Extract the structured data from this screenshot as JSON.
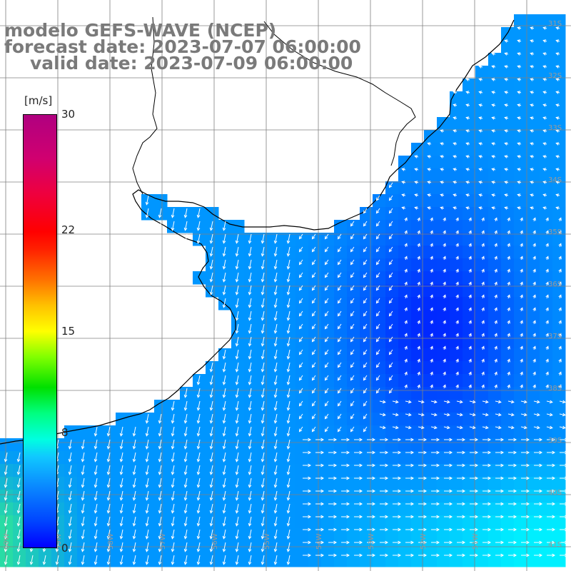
{
  "header": {
    "line1": "modelo GEFS-WAVE (NCEP)",
    "line2": "forecast date: 2023-07-07 06:00:00",
    "line3": "valid date: 2023-07-09 06:00:00"
  },
  "colorbar": {
    "unit": "[m/s]",
    "ticks": [
      {
        "label": "30",
        "value": 30
      },
      {
        "label": "22",
        "value": 22
      },
      {
        "label": "15",
        "value": 15
      },
      {
        "label": "8",
        "value": 8
      },
      {
        "label": "0",
        "value": 0
      }
    ]
  },
  "axes": {
    "lat_labels": [
      "31S",
      "32S",
      "33S",
      "34S",
      "35S",
      "36S",
      "37S",
      "38S",
      "39S",
      "40S",
      "41S"
    ],
    "lon_labels": [
      "60W",
      "59W",
      "58W",
      "57W",
      "56W",
      "55W",
      "54W",
      "53W",
      "52W",
      "51W"
    ]
  },
  "colors": {
    "land": "#ffffff",
    "coast": "#000000",
    "grid": "#808080",
    "arrows": "#ffffff",
    "title_text": "#7a7a7a"
  }
}
